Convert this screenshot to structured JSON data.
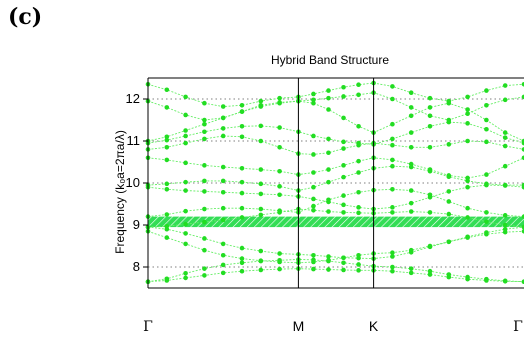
{
  "panel_label": "(c)",
  "colors": {
    "band": "#22dd22",
    "band_line": "#66ee66",
    "gap_fill": "#33dd55",
    "gap_hatch": "#ffffff",
    "grid": "#555555",
    "axis": "#000000",
    "divider": "#000000"
  },
  "chart_data": {
    "type": "line",
    "title": "Hybrid Band Structure",
    "ylabel": "Frequency (k₀a=2πa/λ)",
    "xlabel": "",
    "x_ticks": [
      {
        "label": "Γ",
        "x": 0
      },
      {
        "label": "M",
        "x": 1
      },
      {
        "label": "K",
        "x": 1.5
      },
      {
        "label": "Γ",
        "x": 2.5
      }
    ],
    "xlim": [
      0,
      2.5
    ],
    "ylim": [
      7.5,
      12.5
    ],
    "y_ticks": [
      8,
      9,
      10,
      11,
      12
    ],
    "grid": "horizontal dotted",
    "vertical_dividers": [
      1,
      1.5
    ],
    "band_gap": [
      8.95,
      9.2
    ],
    "x": [
      0,
      0.125,
      0.25,
      0.375,
      0.5,
      0.625,
      0.75,
      0.875,
      1,
      1.1,
      1.2,
      1.3,
      1.4,
      1.5,
      1.625,
      1.75,
      1.875,
      2,
      2.125,
      2.25,
      2.375,
      2.5
    ],
    "series": [
      {
        "values": [
          7.65,
          7.68,
          7.74,
          7.8,
          7.86,
          7.9,
          7.93,
          7.95,
          7.96,
          7.95,
          7.94,
          7.93,
          7.92,
          7.92,
          7.9,
          7.86,
          7.82,
          7.76,
          7.71,
          7.68,
          7.66,
          7.65
        ]
      },
      {
        "values": [
          7.65,
          7.72,
          7.85,
          7.96,
          8.05,
          8.1,
          8.14,
          8.16,
          8.18,
          8.17,
          8.14,
          8.1,
          8.06,
          8.02,
          8.0,
          7.96,
          7.9,
          7.82,
          7.76,
          7.71,
          7.67,
          7.65
        ]
      },
      {
        "values": [
          8.85,
          8.7,
          8.55,
          8.4,
          8.28,
          8.2,
          8.15,
          8.12,
          8.1,
          8.12,
          8.16,
          8.22,
          8.28,
          8.32,
          8.34,
          8.4,
          8.5,
          8.6,
          8.7,
          8.78,
          8.83,
          8.85
        ]
      },
      {
        "values": [
          8.95,
          8.9,
          8.8,
          8.68,
          8.55,
          8.45,
          8.38,
          8.32,
          8.3,
          8.28,
          8.25,
          8.22,
          8.21,
          8.2,
          8.25,
          8.35,
          8.48,
          8.6,
          8.72,
          8.82,
          8.9,
          8.95
        ]
      },
      {
        "values": [
          8.95,
          8.97,
          9.02,
          9.07,
          9.12,
          9.18,
          9.24,
          9.3,
          9.38,
          9.35,
          9.32,
          9.3,
          9.29,
          9.28,
          9.3,
          9.32,
          9.3,
          9.26,
          9.18,
          9.08,
          9.0,
          8.95
        ]
      },
      {
        "values": [
          9.2,
          9.25,
          9.33,
          9.38,
          9.4,
          9.4,
          9.38,
          9.34,
          9.3,
          9.45,
          9.6,
          9.7,
          9.78,
          9.83,
          9.85,
          9.82,
          9.72,
          9.56,
          9.4,
          9.3,
          9.23,
          9.2
        ]
      },
      {
        "values": [
          9.9,
          9.85,
          9.82,
          9.8,
          9.78,
          9.76,
          9.74,
          9.72,
          9.68,
          9.62,
          9.55,
          9.48,
          9.42,
          9.38,
          9.42,
          9.52,
          9.66,
          9.8,
          9.9,
          9.95,
          9.94,
          9.9
        ]
      },
      {
        "values": [
          9.95,
          9.98,
          10.02,
          10.05,
          10.05,
          10.02,
          9.98,
          9.92,
          9.82,
          9.9,
          10.02,
          10.14,
          10.25,
          10.35,
          10.4,
          10.38,
          10.28,
          10.15,
          10.05,
          9.98,
          9.95,
          9.95
        ]
      },
      {
        "values": [
          10.6,
          10.55,
          10.48,
          10.42,
          10.38,
          10.35,
          10.32,
          10.28,
          10.2,
          10.25,
          10.32,
          10.42,
          10.52,
          10.6,
          10.55,
          10.45,
          10.32,
          10.18,
          10.12,
          10.2,
          10.4,
          10.6
        ]
      },
      {
        "values": [
          10.8,
          10.85,
          10.95,
          11.05,
          11.12,
          11.1,
          11.0,
          10.85,
          10.7,
          10.68,
          10.72,
          10.82,
          10.9,
          10.95,
          10.9,
          10.85,
          10.85,
          10.92,
          11.0,
          10.98,
          10.88,
          10.8
        ]
      },
      {
        "values": [
          10.95,
          11.02,
          11.12,
          11.22,
          11.3,
          11.35,
          11.36,
          11.32,
          11.22,
          11.12,
          11.05,
          10.98,
          10.95,
          10.92,
          11.05,
          11.2,
          11.35,
          11.45,
          11.42,
          11.28,
          11.08,
          10.95
        ]
      },
      {
        "values": [
          11.0,
          11.1,
          11.25,
          11.4,
          11.55,
          11.7,
          11.82,
          11.9,
          11.95,
          11.9,
          11.75,
          11.55,
          11.35,
          11.2,
          11.4,
          11.6,
          11.8,
          11.9,
          11.75,
          11.5,
          11.2,
          11.0
        ]
      },
      {
        "values": [
          11.95,
          11.8,
          11.62,
          11.5,
          11.55,
          11.7,
          11.85,
          11.92,
          11.95,
          11.98,
          12.02,
          12.06,
          12.1,
          12.15,
          12.0,
          11.8,
          11.6,
          11.5,
          11.65,
          11.85,
          11.98,
          12.05
        ]
      },
      {
        "values": [
          12.35,
          12.22,
          12.05,
          11.9,
          11.82,
          11.85,
          11.95,
          12.02,
          12.05,
          12.12,
          12.2,
          12.28,
          12.34,
          12.38,
          12.3,
          12.15,
          12.02,
          11.95,
          12.05,
          12.2,
          12.32,
          12.35
        ]
      }
    ]
  }
}
